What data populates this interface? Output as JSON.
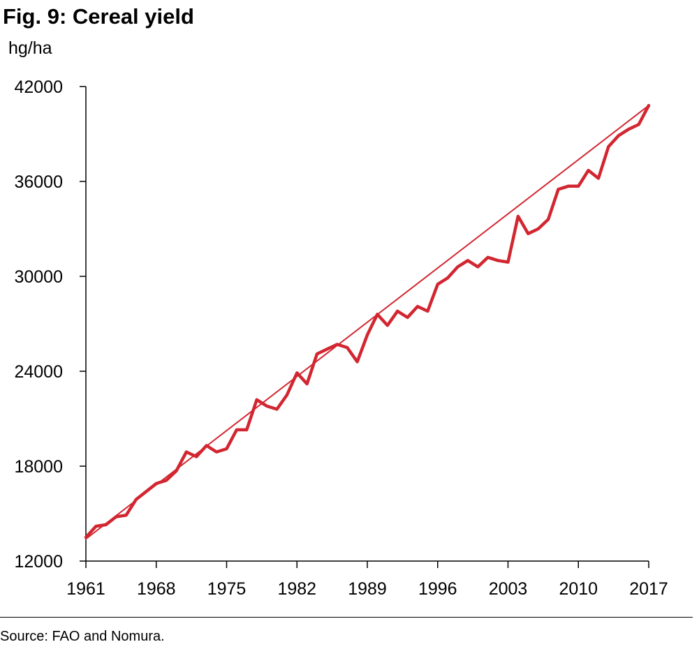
{
  "title": "Fig. 9: Cereal yield",
  "source": "Source: FAO and Nomura.",
  "colors": {
    "series": "#d22630",
    "axis": "#000000"
  },
  "chart_data": {
    "type": "line",
    "title": "Fig. 9: Cereal yield",
    "ylabel": "hg/ha",
    "xlabel": "",
    "ylim": [
      12000,
      42000
    ],
    "xlim": [
      1961,
      2017
    ],
    "yticks": [
      12000,
      18000,
      24000,
      30000,
      36000,
      42000
    ],
    "xticks": [
      1961,
      1968,
      1975,
      1982,
      1989,
      1996,
      2003,
      2010,
      2017
    ],
    "grid": false,
    "legend": "none",
    "series": [
      {
        "kind": "actual",
        "color": "#d22630",
        "x": [
          1961,
          1962,
          1963,
          1964,
          1965,
          1966,
          1967,
          1968,
          1969,
          1970,
          1971,
          1972,
          1973,
          1974,
          1975,
          1976,
          1977,
          1978,
          1979,
          1980,
          1981,
          1982,
          1983,
          1984,
          1985,
          1986,
          1987,
          1988,
          1989,
          1990,
          1991,
          1992,
          1993,
          1994,
          1995,
          1996,
          1997,
          1998,
          1999,
          2000,
          2001,
          2002,
          2003,
          2004,
          2005,
          2006,
          2007,
          2008,
          2009,
          2010,
          2011,
          2012,
          2013,
          2014,
          2015,
          2016,
          2017
        ],
        "y": [
          13500,
          14200,
          14300,
          14800,
          14900,
          15900,
          16400,
          16900,
          17100,
          17700,
          18900,
          18600,
          19300,
          18900,
          19100,
          20300,
          20300,
          22200,
          21800,
          21600,
          22500,
          23900,
          23200,
          25100,
          25400,
          25700,
          25500,
          24600,
          26300,
          27600,
          26900,
          27800,
          27400,
          28100,
          27800,
          29500,
          29900,
          30600,
          31000,
          30600,
          31200,
          31000,
          30900,
          33800,
          32700,
          33000,
          33600,
          35500,
          35700,
          35700,
          36700,
          36200,
          38200,
          38900,
          39300,
          39600,
          40800
        ]
      },
      {
        "kind": "trend",
        "color": "#d22630",
        "x": [
          1961,
          2017
        ],
        "y": [
          13400,
          40800
        ]
      }
    ]
  }
}
